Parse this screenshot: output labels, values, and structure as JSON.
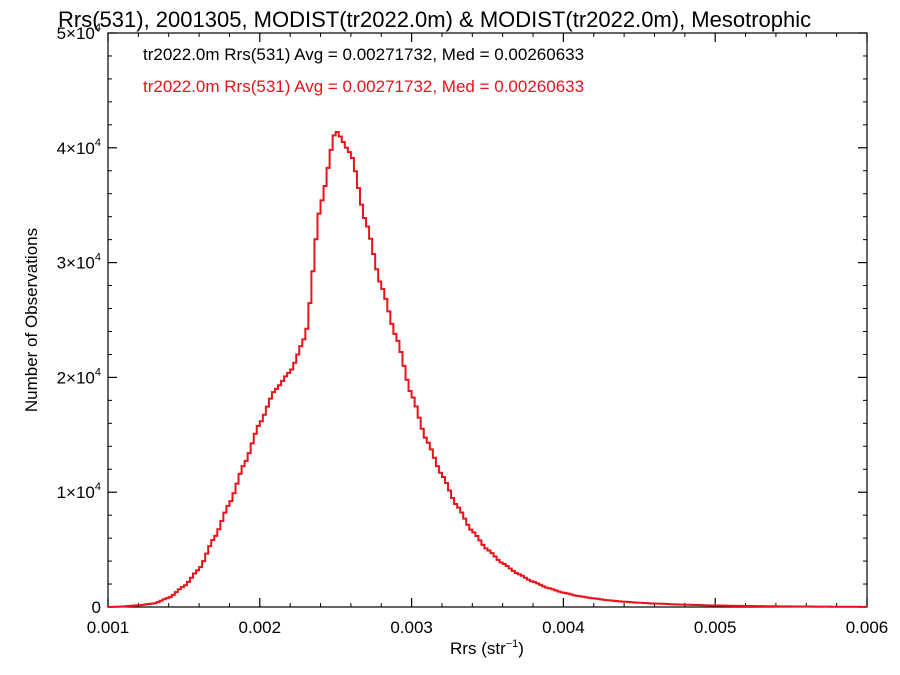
{
  "chart_data": {
    "type": "histogram",
    "title": "Rrs(531), 2001305, MODIST(tr2022.0m) & MODIST(tr2022.0m), Mesotrophic",
    "xlabel_main": "Rrs (str",
    "xlabel_sup": "−1",
    "xlabel_tail": ")",
    "ylabel": "Number of Observations",
    "xlim": [
      0.001,
      0.006
    ],
    "ylim": [
      0,
      50000
    ],
    "x_ticks": [
      {
        "value": 0.001,
        "label": "0.001"
      },
      {
        "value": 0.002,
        "label": "0.002"
      },
      {
        "value": 0.003,
        "label": "0.003"
      },
      {
        "value": 0.004,
        "label": "0.004"
      },
      {
        "value": 0.005,
        "label": "0.005"
      },
      {
        "value": 0.006,
        "label": "0.006"
      }
    ],
    "y_ticks": [
      {
        "value": 0,
        "mant": "0",
        "exp": ""
      },
      {
        "value": 10000,
        "mant": "1×10",
        "exp": "4"
      },
      {
        "value": 20000,
        "mant": "2×10",
        "exp": "4"
      },
      {
        "value": 30000,
        "mant": "3×10",
        "exp": "4"
      },
      {
        "value": 40000,
        "mant": "4×10",
        "exp": "4"
      },
      {
        "value": 50000,
        "mant": "5×10",
        "exp": "4"
      }
    ],
    "legend": [
      {
        "text": "tr2022.0m Rrs(531) Avg = 0.00271732, Med = 0.00260633",
        "color": "#000000"
      },
      {
        "text": "tr2022.0m Rrs(531) Avg = 0.00271732, Med = 0.00260633",
        "color": "#e8131b"
      }
    ],
    "series_color": "#e8131b",
    "bin_width": 2e-05,
    "key_points": [
      [
        0.001,
        0
      ],
      [
        0.0011,
        50
      ],
      [
        0.0012,
        150
      ],
      [
        0.0013,
        300
      ],
      [
        0.0014,
        800
      ],
      [
        0.0015,
        1800
      ],
      [
        0.0016,
        3300
      ],
      [
        0.0017,
        6000
      ],
      [
        0.0018,
        9000
      ],
      [
        0.0019,
        12500
      ],
      [
        0.002,
        16000
      ],
      [
        0.0021,
        18900
      ],
      [
        0.0022,
        20500
      ],
      [
        0.0023,
        23500
      ],
      [
        0.0024,
        35000
      ],
      [
        0.0025,
        41500
      ],
      [
        0.0026,
        39500
      ],
      [
        0.0027,
        33500
      ],
      [
        0.0028,
        28000
      ],
      [
        0.0029,
        23500
      ],
      [
        0.003,
        18500
      ],
      [
        0.0031,
        14500
      ],
      [
        0.0032,
        11500
      ],
      [
        0.0033,
        8800
      ],
      [
        0.0034,
        6600
      ],
      [
        0.0035,
        5000
      ],
      [
        0.0036,
        3800
      ],
      [
        0.0037,
        2900
      ],
      [
        0.0038,
        2200
      ],
      [
        0.0039,
        1650
      ],
      [
        0.004,
        1250
      ],
      [
        0.0041,
        950
      ],
      [
        0.0042,
        750
      ],
      [
        0.0043,
        580
      ],
      [
        0.0044,
        460
      ],
      [
        0.0045,
        370
      ],
      [
        0.0046,
        300
      ],
      [
        0.0048,
        200
      ],
      [
        0.005,
        130
      ],
      [
        0.0052,
        90
      ],
      [
        0.0054,
        60
      ],
      [
        0.0056,
        40
      ],
      [
        0.0058,
        25
      ],
      [
        0.006,
        15
      ]
    ]
  }
}
